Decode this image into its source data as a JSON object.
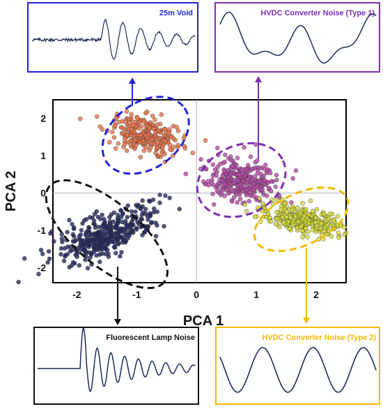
{
  "chart_data": {
    "type": "scatter",
    "xlabel": "PCA 1",
    "ylabel": "PCA 2",
    "xlim": [
      -2.4,
      2.5
    ],
    "ylim": [
      -2.4,
      2.5
    ],
    "x_ticks": [
      -2,
      -1,
      0,
      1,
      2
    ],
    "y_ticks": [
      2,
      1,
      0,
      -1,
      -2
    ],
    "grid": "zero lines only",
    "clusters": [
      {
        "name": "25m Void",
        "color": "#e8734a",
        "ellipse_color": "#2222dd",
        "center": [
          -0.85,
          1.55
        ],
        "spread": [
          0.33,
          0.23
        ],
        "angle_deg": -35,
        "points": 260,
        "waveform": "decaying burst"
      },
      {
        "name": "HVDC Converter Noise (Type 1)",
        "color": "#b44ca6",
        "ellipse_color": "#7d2db5",
        "center": [
          0.75,
          0.35
        ],
        "spread": [
          0.32,
          0.24
        ],
        "angle_deg": -25,
        "points": 320,
        "waveform": "irregular smooth"
      },
      {
        "name": "HVDC Converter Noise (Type 2)",
        "color": "#d4d93a",
        "ellipse_color": "#f5b800",
        "center": [
          1.75,
          -0.7
        ],
        "spread": [
          0.35,
          0.18
        ],
        "angle_deg": -25,
        "points": 300,
        "waveform": "sinusoid"
      },
      {
        "name": "Fluorescent Lamp Noise",
        "color": "#23285e",
        "ellipse_color": "#111111",
        "center": [
          -1.5,
          -1.1
        ],
        "spread": [
          0.52,
          0.22
        ],
        "angle_deg": 40,
        "points": 380,
        "waveform": "spike then ringing"
      }
    ]
  }
}
